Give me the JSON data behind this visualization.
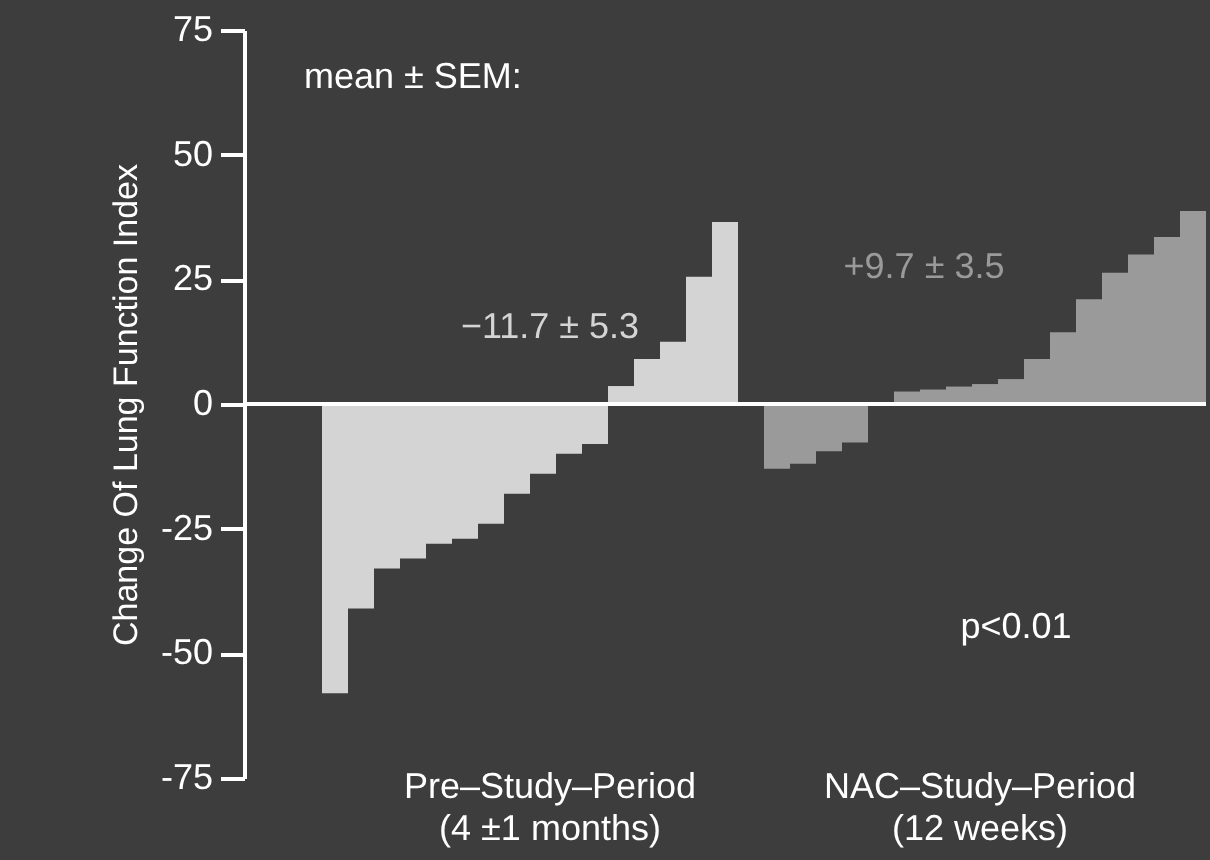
{
  "chart_data": {
    "type": "bar",
    "ylabel": "Change Of Lung Function Index",
    "categories": [
      null,
      null,
      null,
      null,
      null,
      null,
      null,
      null,
      null,
      null,
      null,
      null,
      null,
      null,
      null,
      null,
      null,
      null,
      null,
      null,
      null,
      null,
      null,
      null,
      null,
      null,
      null,
      null,
      null,
      null,
      null,
      null,
      null,
      null,
      null,
      null,
      null
    ],
    "series": [
      {
        "color": "#d4d4d4",
        "values": [
          null,
          null,
          null,
          -58,
          -41,
          -33,
          -31,
          -28,
          -27,
          -24,
          -18,
          -14,
          -10,
          -8,
          3.6,
          9,
          12.5,
          25.5,
          36.5,
          null,
          null,
          null,
          null,
          null,
          null,
          null,
          null,
          null,
          null,
          null,
          null,
          null,
          null,
          null,
          null,
          null,
          null
        ]
      },
      {
        "color": "#9a9a9a",
        "values": [
          null,
          null,
          null,
          null,
          null,
          null,
          null,
          null,
          null,
          null,
          null,
          null,
          null,
          null,
          null,
          null,
          null,
          null,
          null,
          null,
          -13,
          -12,
          -9.5,
          -7.7,
          0,
          2.5,
          2.9,
          3.5,
          4,
          5,
          9,
          14.4,
          21,
          26.3,
          30,
          33.5,
          38.7
        ]
      }
    ],
    "ylim": [
      -75,
      75
    ],
    "yticks": [
      -75,
      -50,
      -25,
      0,
      25,
      50,
      75
    ],
    "ref_lines": [
      {
        "axis": "y",
        "value": 0,
        "color": "#ffffff"
      }
    ],
    "annotations": [
      "mean ± SEM:",
      "−11.7 ± 5.3",
      "+9.7 ± 3.5",
      "p<0.01",
      "Pre–Study–Period\n(4 ±1 months)",
      "NAC–Study–Period\n(12 weeks)"
    ],
    "tick_labels": "y",
    "grid": false
  }
}
